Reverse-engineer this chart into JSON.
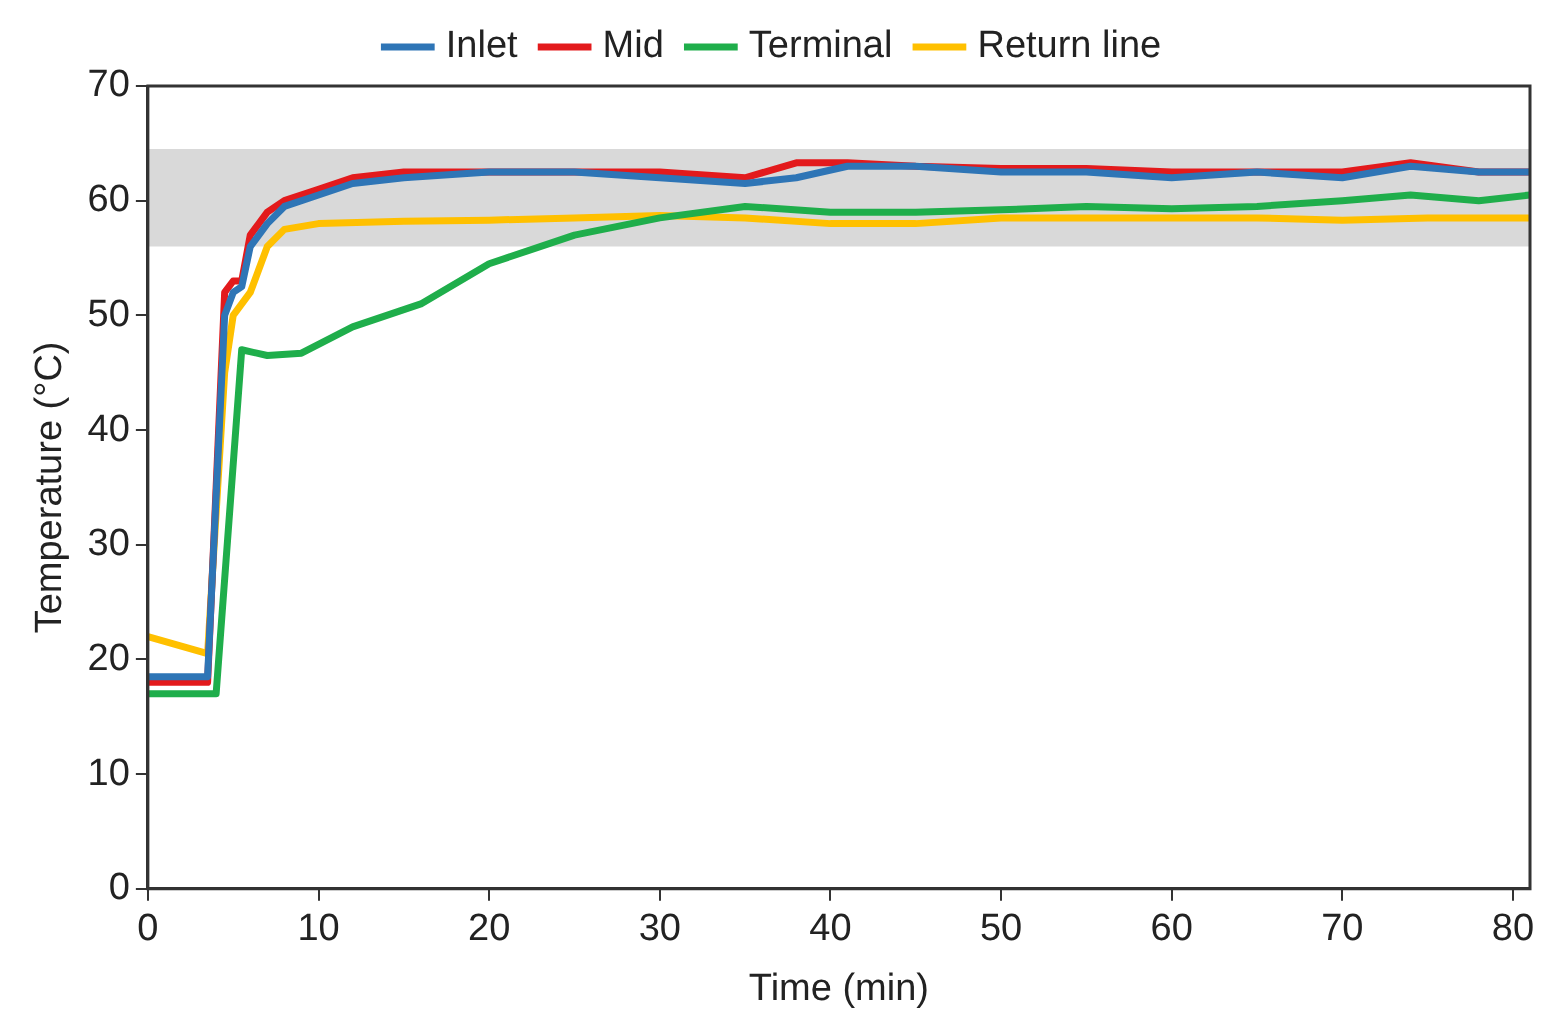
{
  "chart_data": {
    "type": "line",
    "xlabel": "Time (min)",
    "ylabel": "Temperature (°C)",
    "xlim": [
      0,
      81
    ],
    "xticks": [
      0,
      10,
      20,
      30,
      40,
      50,
      60,
      70,
      80
    ],
    "ylim": [
      0,
      70
    ],
    "yticks": [
      0,
      10,
      20,
      30,
      40,
      50,
      60,
      70
    ],
    "grid": false,
    "legend": "top",
    "marker": "none",
    "line_style": "solid",
    "bands": [
      {
        "axis": "y",
        "from": 56,
        "to": 64.5,
        "color": "#d9d9d9"
      }
    ],
    "series": [
      {
        "name": "Inlet",
        "color": "#2e75b6",
        "x": [
          0,
          3.5,
          4.5,
          5,
          5.5,
          6,
          7,
          8,
          10,
          12,
          15,
          20,
          25,
          30,
          35,
          38,
          41,
          45,
          50,
          55,
          60,
          65,
          70,
          74,
          78,
          81
        ],
        "values": [
          18.5,
          18.5,
          50,
          52,
          52.5,
          56,
          58,
          59.5,
          60.5,
          61.5,
          62,
          62.5,
          62.5,
          62,
          61.5,
          62,
          63,
          63,
          62.5,
          62.5,
          62,
          62.5,
          62,
          63,
          62.5,
          62.5
        ]
      },
      {
        "name": "Mid",
        "color": "#e31a1c",
        "x": [
          0,
          3.5,
          4.5,
          5,
          5.5,
          6,
          7,
          8,
          10,
          12,
          15,
          20,
          25,
          30,
          35,
          38,
          41,
          45,
          50,
          55,
          60,
          65,
          70,
          74,
          78,
          81
        ],
        "values": [
          18,
          18,
          52,
          53,
          53,
          57,
          59,
          60,
          61,
          62,
          62.5,
          62.5,
          62.5,
          62.5,
          62,
          63.3,
          63.3,
          63,
          62.8,
          62.8,
          62.5,
          62.5,
          62.5,
          63.3,
          62.5,
          62.5
        ]
      },
      {
        "name": "Terminal",
        "color": "#1fae4b",
        "x": [
          0,
          4,
          5.5,
          7,
          9,
          12,
          16,
          20,
          25,
          30,
          35,
          40,
          45,
          50,
          55,
          60,
          65,
          70,
          74,
          78,
          81
        ],
        "values": [
          17,
          17,
          47,
          46.5,
          46.7,
          49,
          51,
          54.5,
          57,
          58.5,
          59.5,
          59,
          59,
          59.2,
          59.5,
          59.3,
          59.5,
          60,
          60.5,
          60,
          60.5
        ]
      },
      {
        "name": "Return line",
        "color": "#ffc000",
        "x": [
          0,
          3.5,
          4.5,
          5,
          6,
          7,
          8,
          10,
          15,
          20,
          25,
          30,
          35,
          40,
          45,
          50,
          55,
          60,
          65,
          70,
          75,
          81
        ],
        "values": [
          22,
          20.5,
          45,
          50,
          52,
          56,
          57.5,
          58,
          58.2,
          58.3,
          58.5,
          58.7,
          58.5,
          58,
          58,
          58.5,
          58.5,
          58.5,
          58.5,
          58.3,
          58.5,
          58.5
        ]
      }
    ]
  }
}
